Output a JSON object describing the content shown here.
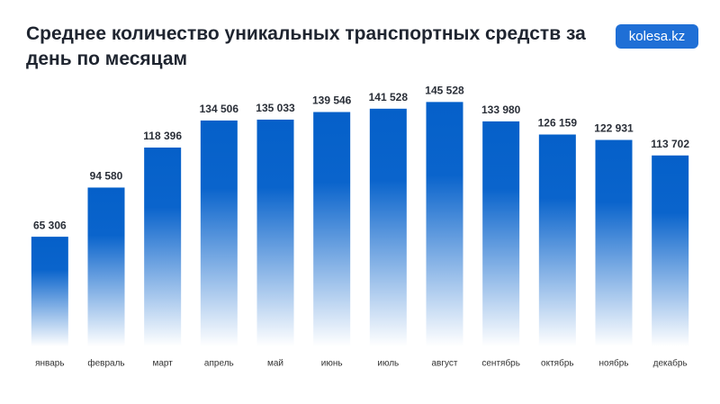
{
  "brand": "kolesa.kz",
  "chart_data": {
    "type": "bar",
    "title": "Среднее количество уникальных транспортных средств за день по месяцам",
    "categories": [
      "январь",
      "февраль",
      "март",
      "апрель",
      "май",
      "июнь",
      "июль",
      "август",
      "сентябрь",
      "октябрь",
      "ноябрь",
      "декабрь"
    ],
    "values": [
      65306,
      94580,
      118396,
      134506,
      135033,
      139546,
      141528,
      145528,
      133980,
      126159,
      122931,
      113702
    ],
    "value_labels": [
      "65 306",
      "94 580",
      "118 396",
      "134 506",
      "135 033",
      "139 546",
      "141 528",
      "145 528",
      "133 980",
      "126 159",
      "122 931",
      "113 702"
    ],
    "color": "#0560c9",
    "ylim": [
      0,
      150000
    ]
  }
}
